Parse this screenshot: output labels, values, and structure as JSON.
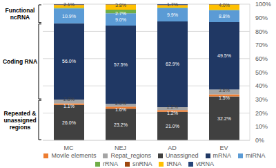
{
  "chart_data": {
    "type": "bar",
    "stacked": true,
    "data_labels": true,
    "grid": true,
    "legend": "bottom",
    "categories": [
      "MC",
      "NEJ",
      "AD",
      "EV"
    ],
    "ylim": [
      0,
      100
    ],
    "yticks": [
      {
        "value": 0,
        "label": "0%"
      },
      {
        "value": 10,
        "label": "10%"
      },
      {
        "value": 20,
        "label": "20%"
      },
      {
        "value": 30,
        "label": "30%"
      },
      {
        "value": 40,
        "label": "40%"
      },
      {
        "value": 50,
        "label": "50%"
      },
      {
        "value": 60,
        "label": "60%"
      },
      {
        "value": 70,
        "label": "70%"
      },
      {
        "value": 80,
        "label": "80%"
      },
      {
        "value": 90,
        "label": "90%"
      },
      {
        "value": 100,
        "label": "100%"
      }
    ],
    "series": [
      {
        "name": "Unassigned",
        "color": "#404040",
        "values": [
          26.0,
          23.2,
          21.0,
          32.2
        ],
        "value_labels": [
          "26.0%",
          "23.2%",
          "21.0%",
          "32.2%"
        ]
      },
      {
        "name": "Movile elements",
        "color": "#ed7d31",
        "values": [
          1.1,
          1.6,
          1.2,
          1.5
        ],
        "value_labels": [
          "1.1%",
          "1.6%",
          "1.2%",
          "1.5%"
        ]
      },
      {
        "name": "Repat_regions",
        "color": "#a5a5a5",
        "values": [
          2.8,
          2.0,
          2.2,
          3.6
        ],
        "value_labels": [
          "2.8%",
          "2.0%",
          "2.2%",
          "3.6%"
        ]
      },
      {
        "name": "mRNA",
        "color": "#203864",
        "values": [
          56.0,
          57.5,
          62.9,
          49.5
        ],
        "value_labels": [
          "56.0%",
          "57.5%",
          "62.9%",
          "49.5%"
        ]
      },
      {
        "name": "miRNA",
        "color": "#5b9bd5",
        "values": [
          10.9,
          9.0,
          9.9,
          8.8
        ],
        "value_labels": [
          "10.9%",
          "9.0%",
          "9.9%",
          "8.8%"
        ]
      },
      {
        "name": "rRNA",
        "color": "#70ad47",
        "values": [
          0.5,
          2.7,
          0.3,
          0.2
        ],
        "value_labels": [
          null,
          "2.7%",
          null,
          null
        ]
      },
      {
        "name": "tRNA",
        "color": "#ffc000",
        "values": [
          2.1,
          3.8,
          1.7,
          4.0
        ],
        "value_labels": [
          "2.1%",
          "3.8%",
          "1.7%",
          "4.0%"
        ]
      },
      {
        "name": "snRNA",
        "color": "#9e480e",
        "values": [
          0.3,
          0.1,
          0.4,
          0.1
        ],
        "value_labels": [
          null,
          null,
          null,
          null
        ]
      },
      {
        "name": "vtRNA",
        "color": "#264478",
        "values": [
          0.3,
          0.1,
          0.4,
          0.1
        ],
        "value_labels": [
          null,
          null,
          null,
          null
        ]
      }
    ],
    "annotations": [
      {
        "text": "Functional ncRNA",
        "series": [
          "miRNA",
          "rRNA",
          "tRNA",
          "snRNA",
          "vtRNA"
        ]
      },
      {
        "text": "Coding RNA",
        "series": [
          "mRNA"
        ]
      },
      {
        "text": "Repeated & unassigned regions",
        "series": [
          "Unassigned",
          "Movile elements",
          "Repat_regions"
        ]
      }
    ]
  }
}
